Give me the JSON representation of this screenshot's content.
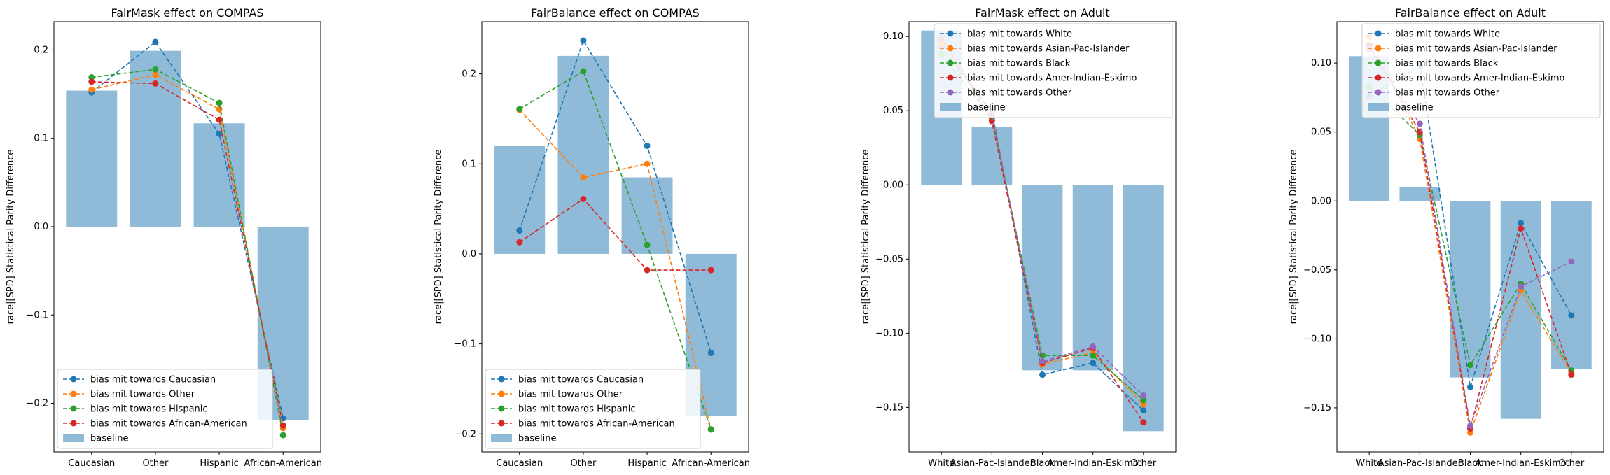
{
  "chart_data": [
    {
      "type": "bar",
      "title": "FairMask effect on COMPAS",
      "xlabel": "",
      "ylabel": "race|[SPD] Statistical Parity Difference",
      "categories": [
        "Caucasian",
        "Other",
        "Hispanic",
        "African-American"
      ],
      "ylim": [
        -0.255,
        0.232
      ],
      "yticks": [
        -0.2,
        -0.1,
        0.0,
        0.1,
        0.2
      ],
      "ytick_labels": [
        "−0.2",
        "−0.1",
        "0.0",
        "0.1",
        "0.2"
      ],
      "legend_position": "lower-left",
      "baseline": {
        "name": "baseline",
        "color": "#1f77b4",
        "values": [
          0.154,
          0.199,
          0.117,
          -0.219
        ]
      },
      "series": [
        {
          "name": "bias mit towards Caucasian",
          "color": "#1f77b4",
          "values": [
            0.152,
            0.209,
            0.105,
            -0.217
          ]
        },
        {
          "name": "bias mit towards Other",
          "color": "#ff7f0e",
          "values": [
            0.155,
            0.172,
            0.133,
            -0.228
          ]
        },
        {
          "name": "bias mit towards Hispanic",
          "color": "#2ca02c",
          "values": [
            0.169,
            0.178,
            0.14,
            -0.236
          ]
        },
        {
          "name": "bias mit towards African-American",
          "color": "#d62728",
          "values": [
            0.164,
            0.162,
            0.121,
            -0.225
          ]
        }
      ]
    },
    {
      "type": "bar",
      "title": "FairBalance effect on COMPAS",
      "xlabel": "",
      "ylabel": "race|[SPD] Statistical Parity Difference",
      "categories": [
        "Caucasian",
        "Other",
        "Hispanic",
        "African-American"
      ],
      "ylim": [
        -0.22,
        0.258
      ],
      "yticks": [
        -0.2,
        -0.1,
        0.0,
        0.1,
        0.2
      ],
      "ytick_labels": [
        "−0.2",
        "−0.1",
        "0.0",
        "0.1",
        "0.2"
      ],
      "legend_position": "lower-left",
      "baseline": {
        "name": "baseline",
        "color": "#1f77b4",
        "values": [
          0.12,
          0.22,
          0.085,
          -0.18
        ]
      },
      "series": [
        {
          "name": "bias mit towards Caucasian",
          "color": "#1f77b4",
          "values": [
            0.026,
            0.237,
            0.12,
            -0.11
          ]
        },
        {
          "name": "bias mit towards Other",
          "color": "#ff7f0e",
          "values": [
            0.16,
            0.085,
            0.1,
            -0.195
          ]
        },
        {
          "name": "bias mit towards Hispanic",
          "color": "#2ca02c",
          "values": [
            0.161,
            0.203,
            0.01,
            -0.195
          ]
        },
        {
          "name": "bias mit towards African-American",
          "color": "#d62728",
          "values": [
            0.013,
            0.061,
            -0.018,
            -0.018
          ]
        }
      ]
    },
    {
      "type": "bar",
      "title": "FairMask effect on Adult",
      "xlabel": "",
      "ylabel": "race|[SPD] Statistical Parity Difference",
      "categories": [
        "White",
        "Asian-Pac-Islander",
        "Black",
        "Amer-Indian-Eskimo",
        "Other"
      ],
      "ylim": [
        -0.18,
        0.11
      ],
      "yticks": [
        -0.15,
        -0.1,
        -0.05,
        0.0,
        0.05,
        0.1
      ],
      "ytick_labels": [
        "−0.15",
        "−0.10",
        "−0.05",
        "0.00",
        "0.05",
        "0.10"
      ],
      "legend_position": "upper-right",
      "baseline": {
        "name": "baseline",
        "color": "#1f77b4",
        "values": [
          0.104,
          0.039,
          -0.125,
          -0.125,
          -0.166
        ]
      },
      "series": [
        {
          "name": "bias mit towards White",
          "color": "#1f77b4",
          "values": [
            0.093,
            0.05,
            -0.128,
            -0.12,
            -0.152
          ]
        },
        {
          "name": "bias mit towards Asian-Pac-Islander",
          "color": "#ff7f0e",
          "values": [
            0.095,
            0.048,
            -0.121,
            -0.113,
            -0.148
          ]
        },
        {
          "name": "bias mit towards Black",
          "color": "#2ca02c",
          "values": [
            0.088,
            0.045,
            -0.115,
            -0.115,
            -0.145
          ]
        },
        {
          "name": "bias mit towards Amer-Indian-Eskimo",
          "color": "#d62728",
          "values": [
            0.099,
            0.043,
            -0.12,
            -0.11,
            -0.16
          ]
        },
        {
          "name": "bias mit towards Other",
          "color": "#9467bd",
          "values": [
            0.1,
            0.047,
            -0.119,
            -0.109,
            -0.142
          ]
        }
      ]
    },
    {
      "type": "bar",
      "title": "FairBalance effect on Adult",
      "xlabel": "",
      "ylabel": "race|[SPD] Statistical Parity Difference",
      "categories": [
        "White",
        "Asian-Pac-Islander",
        "Black",
        "Amer-Indian-Eskimo",
        "Other"
      ],
      "ylim": [
        -0.182,
        0.13
      ],
      "yticks": [
        -0.15,
        -0.1,
        -0.05,
        0.0,
        0.05,
        0.1
      ],
      "ytick_labels": [
        "−0.15",
        "−0.10",
        "−0.05",
        "0.00",
        "0.05",
        "0.10"
      ],
      "legend_position": "upper-right",
      "baseline": {
        "name": "baseline",
        "color": "#1f77b4",
        "values": [
          0.105,
          0.01,
          -0.128,
          -0.158,
          -0.122
        ]
      },
      "series": [
        {
          "name": "bias mit towards White",
          "color": "#1f77b4",
          "values": [
            0.076,
            0.098,
            -0.135,
            -0.016,
            -0.083
          ]
        },
        {
          "name": "bias mit towards Asian-Pac-Islander",
          "color": "#ff7f0e",
          "values": [
            0.119,
            0.045,
            -0.168,
            -0.065,
            -0.125
          ]
        },
        {
          "name": "bias mit towards Black",
          "color": "#2ca02c",
          "values": [
            0.083,
            0.048,
            -0.119,
            -0.06,
            -0.123
          ]
        },
        {
          "name": "bias mit towards Amer-Indian-Eskimo",
          "color": "#d62728",
          "values": [
            0.113,
            0.05,
            -0.165,
            -0.02,
            -0.126
          ]
        },
        {
          "name": "bias mit towards Other",
          "color": "#9467bd",
          "values": [
            0.11,
            0.056,
            -0.163,
            -0.062,
            -0.044
          ]
        }
      ]
    }
  ]
}
